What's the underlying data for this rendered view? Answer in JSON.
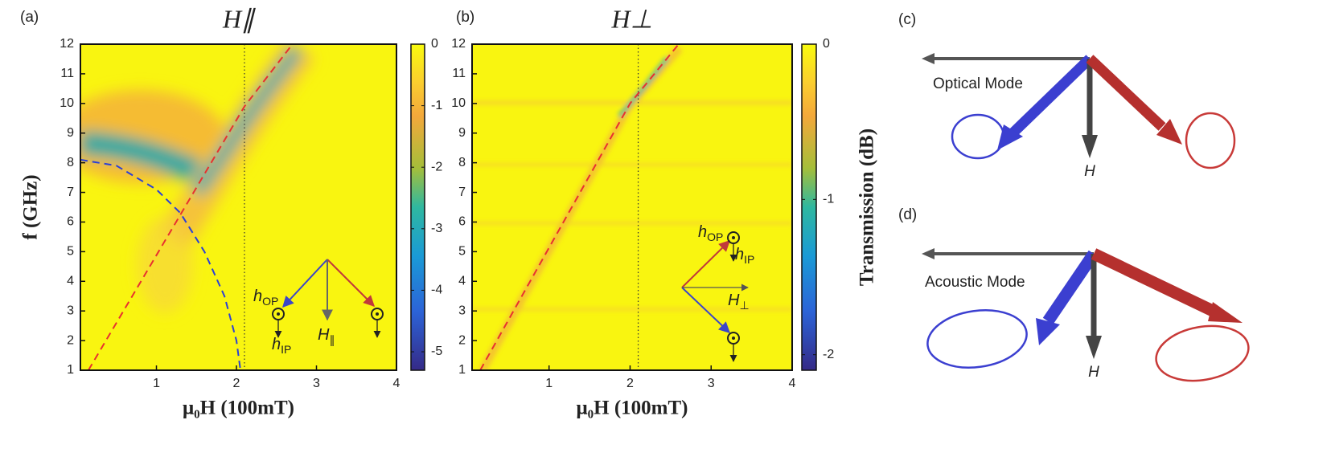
{
  "chart_data": [
    {
      "type": "heatmap",
      "panel": "(a)",
      "title": "H∥",
      "xlabel": "μ₀H (100mT)",
      "ylabel": "f (GHz)",
      "xlim": [
        0.05,
        4
      ],
      "ylim": [
        1,
        12
      ],
      "xticks": [
        1,
        2,
        3,
        4
      ],
      "yticks": [
        1,
        2,
        3,
        4,
        5,
        6,
        7,
        8,
        9,
        10,
        11,
        12
      ],
      "vline": 2.1,
      "series": [
        {
          "color": "#e8302f",
          "x": [
            0.15,
            2.1,
            2.7
          ],
          "values": [
            1,
            9.9,
            12
          ]
        },
        {
          "color": "#2b3fd6",
          "x": [
            0.05,
            0.5,
            1,
            1.3,
            1.6,
            1.85,
            2,
            2.05
          ],
          "values": [
            8.1,
            7.9,
            7.1,
            6.3,
            5,
            3.5,
            2,
            1
          ]
        }
      ],
      "colorbar": {
        "lim": [
          -5.3,
          0
        ],
        "ticks": [
          0,
          -1,
          -2,
          -3,
          -4,
          -5
        ]
      },
      "inset_labels": [
        {
          "symbol": "h",
          "sub": "OP"
        },
        {
          "symbol": "h",
          "sub": "IP"
        },
        {
          "symbol": "H",
          "sub": "∥"
        }
      ]
    },
    {
      "type": "heatmap",
      "panel": "(b)",
      "title": "H⊥",
      "xlabel": "μ₀H (100mT)",
      "xlim": [
        0.05,
        4
      ],
      "ylim": [
        1,
        12
      ],
      "xticks": [
        1,
        2,
        3,
        4
      ],
      "yticks": [
        1,
        2,
        3,
        4,
        5,
        6,
        7,
        8,
        9,
        10,
        11,
        12
      ],
      "vline": 2.1,
      "series": [
        {
          "color": "#e8302f",
          "x": [
            0.15,
            2.0,
            2.6
          ],
          "values": [
            1,
            10,
            12
          ]
        }
      ],
      "colorbar": {
        "lim": [
          -2.1,
          0
        ],
        "ticks": [
          0,
          -1,
          -2
        ],
        "label": "Transmission (dB)"
      },
      "inset_labels": [
        {
          "symbol": "h",
          "sub": "OP"
        },
        {
          "symbol": "h",
          "sub": "IP"
        },
        {
          "symbol": "H",
          "sub": "⊥"
        }
      ]
    }
  ],
  "diagrams": [
    {
      "panel": "(c)",
      "mode": "Optical Mode",
      "field": "H"
    },
    {
      "panel": "(d)",
      "mode": "Acoustic Mode",
      "field": "H"
    }
  ]
}
